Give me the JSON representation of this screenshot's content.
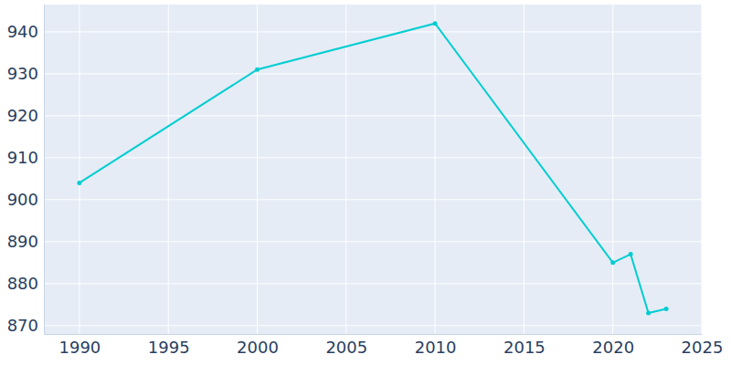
{
  "chart_data": {
    "type": "line",
    "x": [
      1990,
      2000,
      2010,
      2020,
      2021,
      2022,
      2023
    ],
    "values": [
      904,
      931,
      942,
      885,
      887,
      873,
      874
    ],
    "color": "#00cdd1",
    "marker": "circle",
    "xlim": [
      1988,
      2025
    ],
    "xticks": [
      1990,
      1995,
      2000,
      2005,
      2010,
      2015,
      2020,
      2025
    ],
    "ylim": [
      868,
      946.5
    ],
    "yticks": [
      870,
      880,
      890,
      900,
      910,
      920,
      930,
      940
    ],
    "grid": true
  }
}
